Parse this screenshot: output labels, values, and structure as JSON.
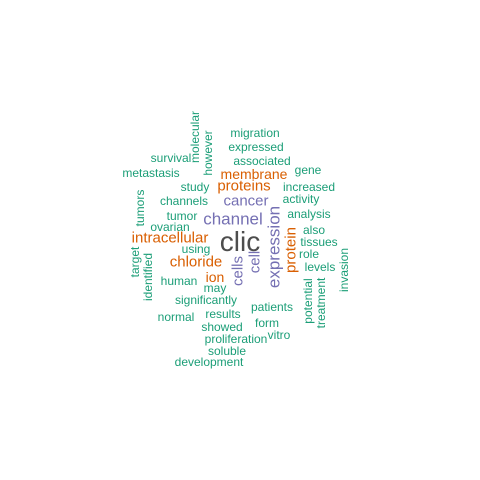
{
  "colors": {
    "background": "#ffffff",
    "gray": "#4d4d4d",
    "teal": "#1b9e77",
    "orange": "#d95f02",
    "purple": "#7570b3"
  },
  "words": [
    {
      "text": "clic",
      "color": "gray",
      "vertical": false
    },
    {
      "text": "expression",
      "color": "purple",
      "vertical": true
    },
    {
      "text": "cells",
      "color": "purple",
      "vertical": true
    },
    {
      "text": "cell",
      "color": "purple",
      "vertical": true
    },
    {
      "text": "channel",
      "color": "purple",
      "vertical": false
    },
    {
      "text": "cancer",
      "color": "purple",
      "vertical": false
    },
    {
      "text": "protein",
      "color": "orange",
      "vertical": true
    },
    {
      "text": "chloride",
      "color": "orange",
      "vertical": false
    },
    {
      "text": "intracellular",
      "color": "orange",
      "vertical": false
    },
    {
      "text": "proteins",
      "color": "orange",
      "vertical": false
    },
    {
      "text": "membrane",
      "color": "orange",
      "vertical": false
    },
    {
      "text": "ion",
      "color": "orange",
      "vertical": false
    },
    {
      "text": "migration",
      "color": "teal",
      "vertical": false
    },
    {
      "text": "expressed",
      "color": "teal",
      "vertical": false
    },
    {
      "text": "associated",
      "color": "teal",
      "vertical": false
    },
    {
      "text": "gene",
      "color": "teal",
      "vertical": false
    },
    {
      "text": "molecular",
      "color": "teal",
      "vertical": true
    },
    {
      "text": "however",
      "color": "teal",
      "vertical": true
    },
    {
      "text": "survival",
      "color": "teal",
      "vertical": false
    },
    {
      "text": "metastasis",
      "color": "teal",
      "vertical": false
    },
    {
      "text": "study",
      "color": "teal",
      "vertical": false
    },
    {
      "text": "increased",
      "color": "teal",
      "vertical": false
    },
    {
      "text": "channels",
      "color": "teal",
      "vertical": false
    },
    {
      "text": "activity",
      "color": "teal",
      "vertical": false
    },
    {
      "text": "tumors",
      "color": "teal",
      "vertical": true
    },
    {
      "text": "tumor",
      "color": "teal",
      "vertical": false
    },
    {
      "text": "analysis",
      "color": "teal",
      "vertical": false
    },
    {
      "text": "ovarian",
      "color": "teal",
      "vertical": false
    },
    {
      "text": "also",
      "color": "teal",
      "vertical": false
    },
    {
      "text": "tissues",
      "color": "teal",
      "vertical": false
    },
    {
      "text": "using",
      "color": "teal",
      "vertical": false
    },
    {
      "text": "role",
      "color": "teal",
      "vertical": false
    },
    {
      "text": "target",
      "color": "teal",
      "vertical": true
    },
    {
      "text": "identified",
      "color": "teal",
      "vertical": true
    },
    {
      "text": "invasion",
      "color": "teal",
      "vertical": true
    },
    {
      "text": "levels",
      "color": "teal",
      "vertical": false
    },
    {
      "text": "human",
      "color": "teal",
      "vertical": false
    },
    {
      "text": "may",
      "color": "teal",
      "vertical": false
    },
    {
      "text": "potential",
      "color": "teal",
      "vertical": true
    },
    {
      "text": "treatment",
      "color": "teal",
      "vertical": true
    },
    {
      "text": "significantly",
      "color": "teal",
      "vertical": false
    },
    {
      "text": "patients",
      "color": "teal",
      "vertical": false
    },
    {
      "text": "normal",
      "color": "teal",
      "vertical": false
    },
    {
      "text": "results",
      "color": "teal",
      "vertical": false
    },
    {
      "text": "form",
      "color": "teal",
      "vertical": false
    },
    {
      "text": "showed",
      "color": "teal",
      "vertical": false
    },
    {
      "text": "vitro",
      "color": "teal",
      "vertical": false
    },
    {
      "text": "proliferation",
      "color": "teal",
      "vertical": false
    },
    {
      "text": "soluble",
      "color": "teal",
      "vertical": false
    },
    {
      "text": "development",
      "color": "teal",
      "vertical": false
    }
  ]
}
